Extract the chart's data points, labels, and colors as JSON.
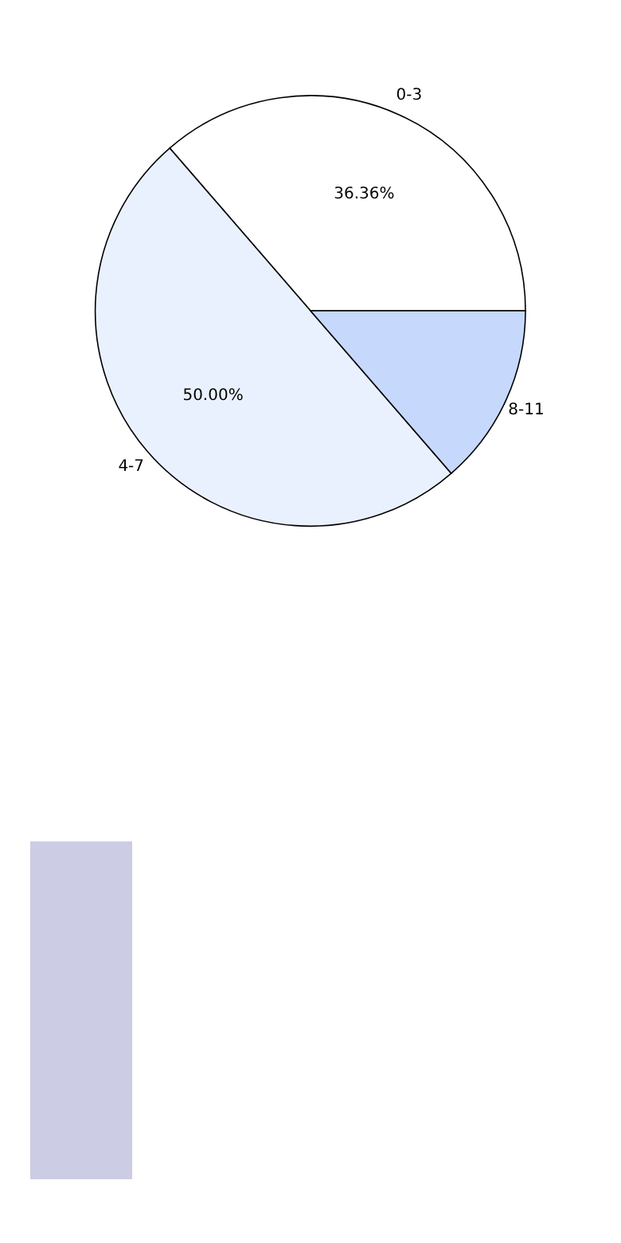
{
  "chart_data": {
    "type": "pie",
    "categories": [
      "0-3",
      "4-7",
      "8-11"
    ],
    "values": [
      36.36,
      50.0,
      13.64
    ],
    "colors": [
      "#ffffff",
      "#eaf1fe",
      "#c6d9fd"
    ],
    "value_labels": [
      "36.36%",
      "50.00%",
      null
    ]
  }
}
